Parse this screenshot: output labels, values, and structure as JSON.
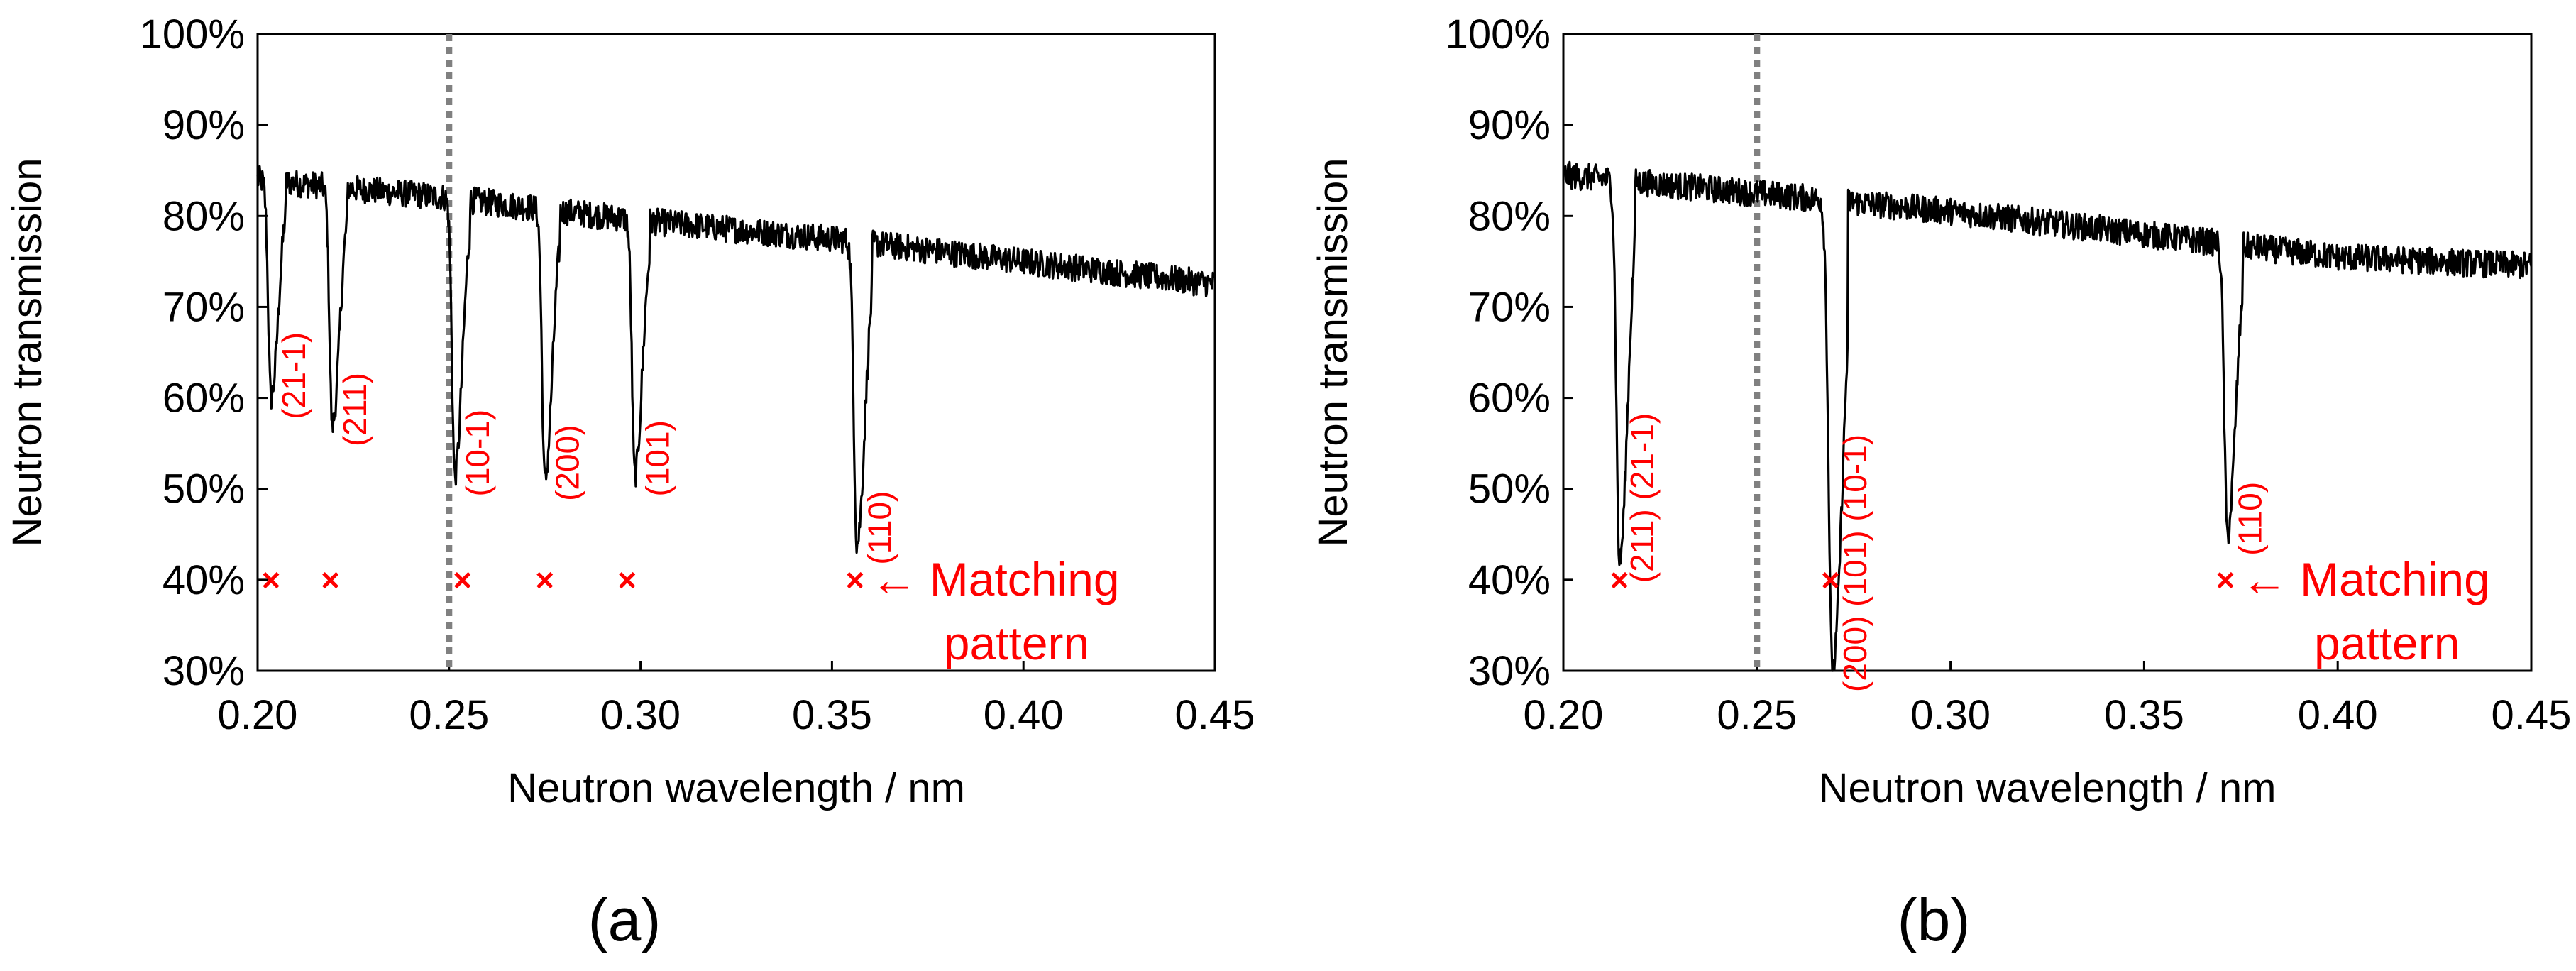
{
  "chart_data": [
    {
      "type": "line",
      "panel_label": "(a)",
      "xlabel": "Neutron wavelength / nm",
      "ylabel": "Neutron transmission",
      "xlim": [
        0.2,
        0.45
      ],
      "ylim": [
        0.3,
        1.0
      ],
      "x_ticks": [
        "0.20",
        "0.25",
        "0.30",
        "0.35",
        "0.40",
        "0.45"
      ],
      "y_ticks": [
        "30%",
        "40%",
        "50%",
        "60%",
        "70%",
        "80%",
        "90%",
        "100%"
      ],
      "vline_x": 0.25,
      "baseline": [
        [
          0.2,
          0.84
        ],
        [
          0.25,
          0.82
        ],
        [
          0.3,
          0.795
        ],
        [
          0.35,
          0.775
        ],
        [
          0.4,
          0.75
        ],
        [
          0.45,
          0.725
        ]
      ],
      "dips": [
        {
          "x": 0.2035,
          "min": 0.6,
          "width": 0.0012,
          "hkl": "(21-1)"
        },
        {
          "x": 0.2195,
          "min": 0.57,
          "width": 0.0012,
          "hkl": "(211)"
        },
        {
          "x": 0.2515,
          "min": 0.515,
          "width": 0.0012,
          "hkl": "(10-1)"
        },
        {
          "x": 0.275,
          "min": 0.51,
          "width": 0.0012,
          "hkl": "(200)"
        },
        {
          "x": 0.2985,
          "min": 0.515,
          "width": 0.0012,
          "hkl": "(101)"
        },
        {
          "x": 0.3565,
          "min": 0.44,
          "width": 0.0013,
          "hkl": "(110)"
        }
      ],
      "matching_markers_x": [
        0.2035,
        0.219,
        0.2535,
        0.275,
        0.2965,
        0.356
      ],
      "matching_markers_y": 0.4,
      "annotation": [
        "Matching",
        "pattern"
      ],
      "arrow": "←"
    },
    {
      "type": "line",
      "panel_label": "(b)",
      "xlabel": "Neutron wavelength / nm",
      "ylabel": "Neutron transmission",
      "xlim": [
        0.2,
        0.45
      ],
      "ylim": [
        0.3,
        1.0
      ],
      "x_ticks": [
        "0.20",
        "0.25",
        "0.30",
        "0.35",
        "0.40",
        "0.45"
      ],
      "y_ticks": [
        "30%",
        "40%",
        "50%",
        "60%",
        "70%",
        "80%",
        "90%",
        "100%"
      ],
      "vline_x": 0.25,
      "baseline": [
        [
          0.2,
          0.845
        ],
        [
          0.25,
          0.825
        ],
        [
          0.3,
          0.805
        ],
        [
          0.35,
          0.78
        ],
        [
          0.4,
          0.755
        ],
        [
          0.45,
          0.745
        ]
      ],
      "dips": [
        {
          "x": 0.2145,
          "min": 0.42,
          "width": 0.0013,
          "hkl": "(211) (21-1)"
        },
        {
          "x": 0.2695,
          "min": 0.3,
          "width": 0.0016,
          "hkl": "(200) (101) (10-1)"
        },
        {
          "x": 0.3715,
          "min": 0.45,
          "width": 0.0013,
          "hkl": "(110)"
        }
      ],
      "matching_markers_x": [
        0.2145,
        0.269,
        0.371
      ],
      "matching_markers_y": 0.4,
      "annotation": [
        "Matching",
        "pattern"
      ],
      "arrow": "←"
    }
  ]
}
